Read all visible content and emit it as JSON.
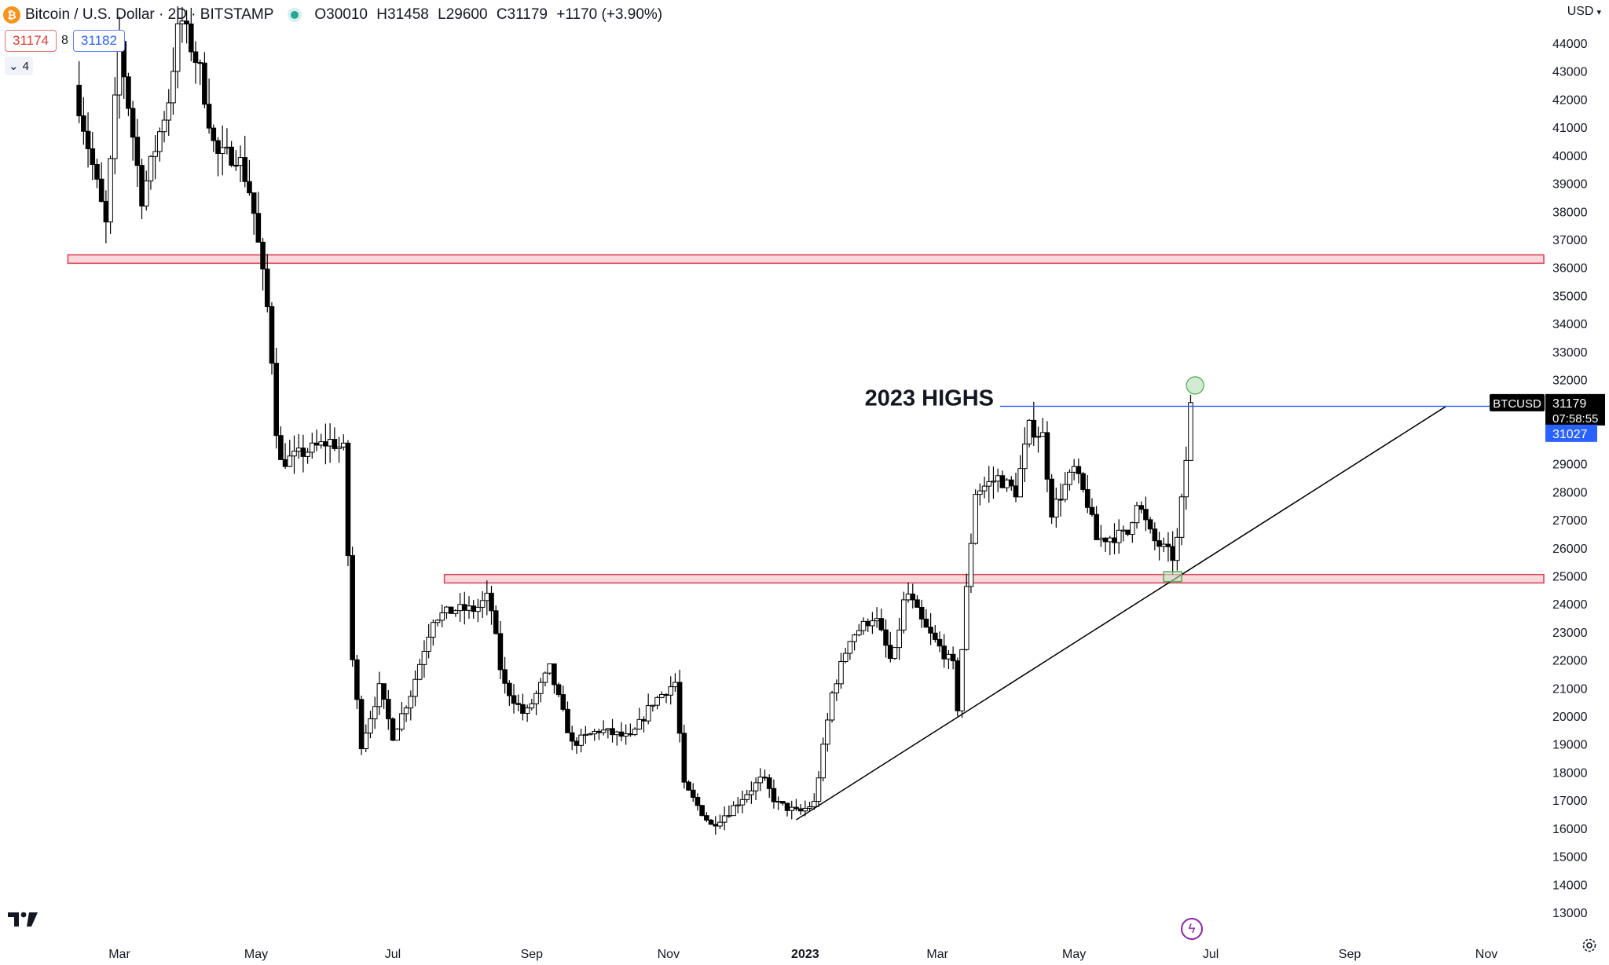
{
  "header": {
    "symbol": "Bitcoin / U.S. Dollar · 2D · BITSTAMP",
    "open": "O30010",
    "high": "H31458",
    "low": "L29600",
    "close": "C31179",
    "change": "+1170 (+3.90%)",
    "logo_glyph": "₿"
  },
  "trade": {
    "sell": "31174",
    "spread": "8",
    "buy": "31182"
  },
  "indicators_toggle": {
    "count": "4"
  },
  "currency": "USD",
  "colors": {
    "candle_up": "#ffffff",
    "candle_down": "#000000",
    "zone_fill": "#f8c9cf",
    "zone_border": "#d84a5c",
    "highs_line": "#2962ff",
    "trendline": "#000000",
    "support_box": "#4caf50",
    "price_label_bg": "#000000",
    "prev_close_bg": "#2962ff"
  },
  "chart_data": {
    "type": "candlestick",
    "timeframe": "2D",
    "yaxis": {
      "min": 13000,
      "max": 44000,
      "ticks": [
        44000,
        43000,
        42000,
        41000,
        40000,
        39000,
        38000,
        37000,
        36000,
        35000,
        34000,
        33000,
        32000,
        31000,
        30000,
        29000,
        28000,
        27000,
        26000,
        25000,
        24000,
        23000,
        22000,
        21000,
        20000,
        19000,
        18000,
        17000,
        16000,
        15000,
        14000,
        13000
      ]
    },
    "xaxis": {
      "ticks": [
        {
          "label": "Mar",
          "date": "2022-03-01",
          "bold": false
        },
        {
          "label": "May",
          "date": "2022-05-01",
          "bold": false
        },
        {
          "label": "Jul",
          "date": "2022-07-01",
          "bold": false
        },
        {
          "label": "Sep",
          "date": "2022-09-01",
          "bold": false
        },
        {
          "label": "Nov",
          "date": "2022-11-01",
          "bold": false
        },
        {
          "label": "2023",
          "date": "2023-01-01",
          "bold": true
        },
        {
          "label": "Mar",
          "date": "2023-03-01",
          "bold": false
        },
        {
          "label": "May",
          "date": "2023-05-01",
          "bold": false
        },
        {
          "label": "Jul",
          "date": "2023-07-01",
          "bold": false
        },
        {
          "label": "Sep",
          "date": "2023-09-01",
          "bold": false
        },
        {
          "label": "Nov",
          "date": "2023-11-01",
          "bold": false
        }
      ]
    },
    "waypoints": [
      [
        "2022-02-10",
        42500
      ],
      [
        "2022-02-24",
        37500
      ],
      [
        "2022-03-02",
        44000
      ],
      [
        "2022-03-12",
        38500
      ],
      [
        "2022-03-24",
        42000
      ],
      [
        "2022-03-29",
        45000
      ],
      [
        "2022-04-07",
        43000
      ],
      [
        "2022-04-14",
        40000
      ],
      [
        "2022-04-24",
        40000
      ],
      [
        "2022-04-30",
        38500
      ],
      [
        "2022-05-08",
        34000
      ],
      [
        "2022-05-12",
        29000
      ],
      [
        "2022-05-26",
        29500
      ],
      [
        "2022-06-04",
        29800
      ],
      [
        "2022-06-10",
        29500
      ],
      [
        "2022-06-14",
        22000
      ],
      [
        "2022-06-18",
        19000
      ],
      [
        "2022-06-26",
        21000
      ],
      [
        "2022-07-02",
        19300
      ],
      [
        "2022-07-10",
        20800
      ],
      [
        "2022-07-20",
        23500
      ],
      [
        "2022-07-30",
        23800
      ],
      [
        "2022-08-08",
        23800
      ],
      [
        "2022-08-14",
        24300
      ],
      [
        "2022-08-20",
        21200
      ],
      [
        "2022-08-30",
        20000
      ],
      [
        "2022-09-10",
        21700
      ],
      [
        "2022-09-20",
        19000
      ],
      [
        "2022-10-02",
        19500
      ],
      [
        "2022-10-16",
        19200
      ],
      [
        "2022-10-26",
        20500
      ],
      [
        "2022-11-05",
        21200
      ],
      [
        "2022-11-09",
        17500
      ],
      [
        "2022-11-21",
        16100
      ],
      [
        "2022-11-29",
        16600
      ],
      [
        "2022-12-05",
        17100
      ],
      [
        "2022-12-14",
        17800
      ],
      [
        "2022-12-20",
        16900
      ],
      [
        "2022-12-30",
        16550
      ],
      [
        "2023-01-06",
        16900
      ],
      [
        "2023-01-14",
        20800
      ],
      [
        "2023-01-22",
        22800
      ],
      [
        "2023-02-02",
        23600
      ],
      [
        "2023-02-10",
        21800
      ],
      [
        "2023-02-16",
        24500
      ],
      [
        "2023-02-24",
        23200
      ],
      [
        "2023-03-09",
        21800
      ],
      [
        "2023-03-11",
        20300
      ],
      [
        "2023-03-15",
        24500
      ],
      [
        "2023-03-19",
        28000
      ],
      [
        "2023-03-29",
        28500
      ],
      [
        "2023-04-06",
        28000
      ],
      [
        "2023-04-12",
        30300
      ],
      [
        "2023-04-18",
        30000
      ],
      [
        "2023-04-22",
        27300
      ],
      [
        "2023-05-02",
        28800
      ],
      [
        "2023-05-08",
        27600
      ],
      [
        "2023-05-12",
        26300
      ],
      [
        "2023-05-26",
        26500
      ],
      [
        "2023-05-30",
        27700
      ],
      [
        "2023-06-06",
        26300
      ],
      [
        "2023-06-12",
        25900
      ],
      [
        "2023-06-16",
        25600
      ],
      [
        "2023-06-20",
        28300
      ],
      [
        "2023-06-22",
        30000
      ],
      [
        "2023-06-24",
        31179
      ]
    ],
    "zones": [
      {
        "from": "2022-02-06",
        "low": 36150,
        "high": 36450
      },
      {
        "from": "2022-07-24",
        "low": 24750,
        "high": 25050
      }
    ],
    "annotations": {
      "highs_label": "2023 HIGHS",
      "highs_level": 31050,
      "highs_from": "2023-03-29",
      "highs_to": "2023-10-14",
      "trendline": {
        "from": [
          "2022-12-28",
          16300
        ],
        "to": [
          "2023-10-14",
          31050
        ]
      },
      "support_box": {
        "from": "2023-06-10",
        "to": "2023-06-18",
        "low": 24800,
        "high": 25150
      },
      "high_marker": {
        "date": "2023-06-24",
        "value": 31458
      }
    },
    "price_labels": {
      "symbol": "BTCUSD",
      "last": "31179",
      "countdown": "07:58:55",
      "prev": "31027"
    }
  }
}
